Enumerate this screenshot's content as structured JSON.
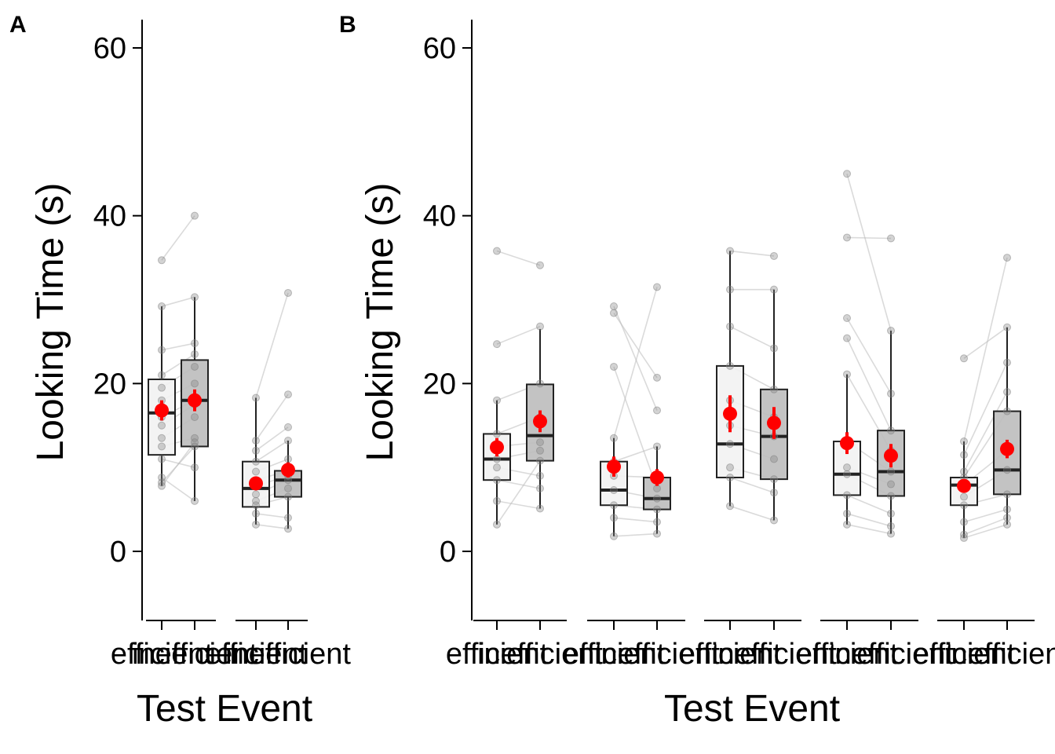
{
  "chart_data": [
    {
      "panel": "A",
      "type": "box",
      "xlabel": "Test Event",
      "ylabel": "Looking Time (s)",
      "yticks": [
        0,
        20,
        40,
        60
      ],
      "ylim": [
        -8,
        63
      ],
      "grid": false,
      "colors": {
        "efficient_fill": "#f2f2f2",
        "inefficient_fill": "#bdbdbd",
        "mean_marker": "#ff0000",
        "points": "#808080"
      },
      "groups": [
        {
          "categories": [
            "efficient",
            "inefficient"
          ],
          "boxes": [
            {
              "q1": 11.5,
              "median": 16.5,
              "q3": 20.5,
              "whisker_low": 7.8,
              "whisker_high": 29.2,
              "mean": 16.8,
              "ci": [
                15.6,
                18.0
              ]
            },
            {
              "q1": 12.5,
              "median": 18.0,
              "q3": 22.8,
              "whisker_low": 6.0,
              "whisker_high": 30.3,
              "mean": 18.0,
              "ci": [
                16.7,
                19.3
              ]
            }
          ],
          "pairs": [
            [
              8.2,
              12.5
            ],
            [
              34.7,
              40.0
            ],
            [
              29.2,
              30.3
            ],
            [
              24.0,
              24.8
            ],
            [
              21.0,
              23.5
            ],
            [
              19.5,
              22.0
            ],
            [
              18.0,
              20.0
            ],
            [
              16.0,
              18.0
            ],
            [
              15.0,
              17.5
            ],
            [
              13.5,
              16.0
            ],
            [
              12.5,
              13.5
            ],
            [
              11.0,
              10.0
            ],
            [
              8.8,
              6.0
            ],
            [
              7.8,
              13.0
            ]
          ]
        },
        {
          "categories": [
            "efficient",
            "inefficient"
          ],
          "boxes": [
            {
              "q1": 5.3,
              "median": 7.5,
              "q3": 10.7,
              "whisker_low": 3.2,
              "whisker_high": 18.3,
              "mean": 8.1,
              "ci": [
                7.3,
                8.9
              ]
            },
            {
              "q1": 6.5,
              "median": 8.5,
              "q3": 9.6,
              "whisker_low": 2.7,
              "whisker_high": 13.2,
              "mean": 9.7,
              "ci": [
                8.8,
                10.6
              ]
            }
          ],
          "pairs": [
            [
              18.3,
              30.8
            ],
            [
              13.2,
              18.7
            ],
            [
              12.0,
              14.8
            ],
            [
              10.7,
              13.2
            ],
            [
              9.5,
              11.0
            ],
            [
              8.5,
              9.6
            ],
            [
              7.8,
              9.0
            ],
            [
              6.8,
              8.5
            ],
            [
              6.0,
              7.5
            ],
            [
              5.5,
              6.5
            ],
            [
              4.5,
              4.0
            ],
            [
              3.2,
              2.7
            ]
          ]
        }
      ]
    },
    {
      "panel": "B",
      "type": "box",
      "xlabel": "Test Event",
      "ylabel": "Looking Time (s)",
      "yticks": [
        0,
        20,
        40,
        60
      ],
      "ylim": [
        -8,
        63
      ],
      "grid": false,
      "colors": {
        "efficient_fill": "#f2f2f2",
        "inefficient_fill": "#bdbdbd",
        "mean_marker": "#ff0000",
        "points": "#808080"
      },
      "groups": [
        {
          "categories": [
            "efficient",
            "inefficient"
          ],
          "boxes": [
            {
              "q1": 8.5,
              "median": 11.0,
              "q3": 14.0,
              "whisker_low": 3.2,
              "whisker_high": 18.0,
              "mean": 12.4,
              "ci": [
                11.3,
                13.5
              ]
            },
            {
              "q1": 10.8,
              "median": 13.8,
              "q3": 19.9,
              "whisker_low": 5.1,
              "whisker_high": 26.5,
              "mean": 15.5,
              "ci": [
                14.2,
                16.8
              ]
            }
          ],
          "pairs": [
            [
              35.8,
              34.1
            ],
            [
              24.7,
              26.8
            ],
            [
              18.0,
              20.0
            ],
            [
              14.0,
              16.0
            ],
            [
              12.5,
              13.0
            ],
            [
              11.0,
              12.0
            ],
            [
              10.0,
              9.0
            ],
            [
              8.5,
              7.5
            ],
            [
              6.0,
              5.1
            ],
            [
              3.2,
              10.8
            ]
          ]
        },
        {
          "categories": [
            "efficient",
            "inefficient"
          ],
          "boxes": [
            {
              "q1": 5.5,
              "median": 7.3,
              "q3": 10.7,
              "whisker_low": 1.8,
              "whisker_high": 13.5,
              "mean": 10.1,
              "ci": [
                8.9,
                11.3
              ]
            },
            {
              "q1": 5.0,
              "median": 6.3,
              "q3": 8.8,
              "whisker_low": 2.1,
              "whisker_high": 12.5,
              "mean": 8.8,
              "ci": [
                7.8,
                9.8
              ]
            }
          ],
          "pairs": [
            [
              29.2,
              16.8
            ],
            [
              28.4,
              20.7
            ],
            [
              22.0,
              7.5
            ],
            [
              13.5,
              31.5
            ],
            [
              10.7,
              12.5
            ],
            [
              9.0,
              8.8
            ],
            [
              7.3,
              6.3
            ],
            [
              5.5,
              5.0
            ],
            [
              4.0,
              3.5
            ],
            [
              1.8,
              2.1
            ]
          ]
        },
        {
          "categories": [
            "efficient",
            "inefficient"
          ],
          "boxes": [
            {
              "q1": 8.8,
              "median": 12.8,
              "q3": 22.1,
              "whisker_low": 5.4,
              "whisker_high": 35.8,
              "mean": 16.4,
              "ci": [
                14.2,
                18.6
              ]
            },
            {
              "q1": 8.6,
              "median": 13.7,
              "q3": 19.3,
              "whisker_low": 3.7,
              "whisker_high": 31.2,
              "mean": 15.3,
              "ci": [
                13.4,
                17.2
              ]
            }
          ],
          "pairs": [
            [
              35.8,
              35.2
            ],
            [
              31.2,
              31.2
            ],
            [
              26.8,
              24.2
            ],
            [
              22.1,
              19.3
            ],
            [
              18.0,
              16.0
            ],
            [
              15.0,
              13.7
            ],
            [
              12.8,
              11.0
            ],
            [
              10.0,
              8.6
            ],
            [
              8.8,
              7.0
            ],
            [
              5.4,
              3.7
            ]
          ]
        },
        {
          "categories": [
            "efficient",
            "inefficient"
          ],
          "boxes": [
            {
              "q1": 6.7,
              "median": 9.2,
              "q3": 13.1,
              "whisker_low": 3.2,
              "whisker_high": 21.1,
              "mean": 12.9,
              "ci": [
                11.6,
                14.2
              ]
            },
            {
              "q1": 6.6,
              "median": 9.5,
              "q3": 14.4,
              "whisker_low": 2.1,
              "whisker_high": 26.3,
              "mean": 11.4,
              "ci": [
                10.0,
                12.8
              ]
            }
          ],
          "pairs": [
            [
              45.0,
              26.3
            ],
            [
              37.4,
              37.3
            ],
            [
              27.8,
              18.8
            ],
            [
              25.4,
              14.4
            ],
            [
              21.1,
              12.0
            ],
            [
              13.1,
              9.5
            ],
            [
              10.0,
              8.0
            ],
            [
              9.2,
              6.6
            ],
            [
              6.7,
              4.5
            ],
            [
              4.5,
              3.0
            ],
            [
              3.2,
              2.1
            ]
          ]
        },
        {
          "categories": [
            "efficient",
            "inefficient"
          ],
          "boxes": [
            {
              "q1": 5.5,
              "median": 7.9,
              "q3": 8.8,
              "whisker_low": 1.6,
              "whisker_high": 13.1,
              "mean": 7.8,
              "ci": [
                7.0,
                8.6
              ]
            },
            {
              "q1": 6.8,
              "median": 9.7,
              "q3": 16.7,
              "whisker_low": 3.2,
              "whisker_high": 26.7,
              "mean": 12.2,
              "ci": [
                11.1,
                13.3
              ]
            }
          ],
          "pairs": [
            [
              23.0,
              26.7
            ],
            [
              13.1,
              35.0
            ],
            [
              11.5,
              22.5
            ],
            [
              9.5,
              19.0
            ],
            [
              8.8,
              16.7
            ],
            [
              7.9,
              12.0
            ],
            [
              6.5,
              9.7
            ],
            [
              5.5,
              6.8
            ],
            [
              3.5,
              5.0
            ],
            [
              2.0,
              4.0
            ],
            [
              1.6,
              3.2
            ]
          ]
        }
      ]
    }
  ]
}
